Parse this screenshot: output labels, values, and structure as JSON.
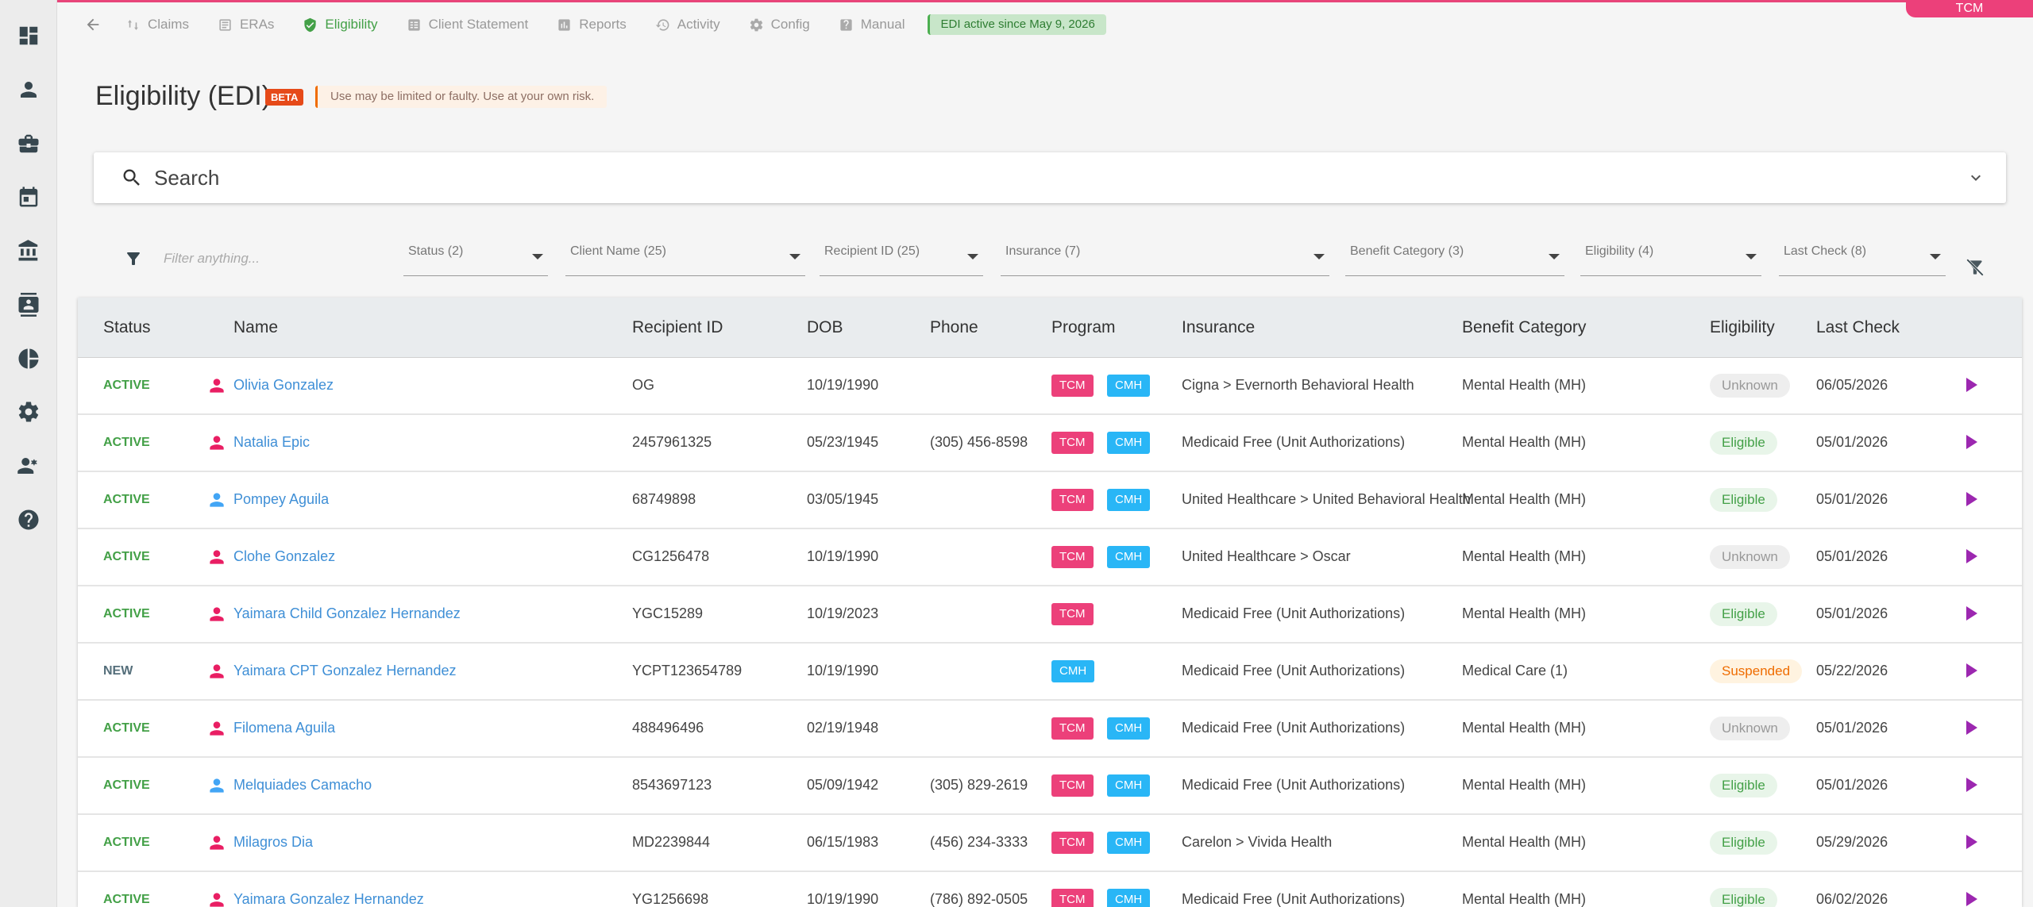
{
  "app": {
    "corner_tab": "TCM"
  },
  "nav": {
    "tabs": [
      {
        "label": "Claims",
        "icon": "claims-icon"
      },
      {
        "label": "ERAs",
        "icon": "eras-icon"
      },
      {
        "label": "Eligibility",
        "icon": "shield-check-icon",
        "active": true
      },
      {
        "label": "Client Statement",
        "icon": "statement-icon"
      },
      {
        "label": "Reports",
        "icon": "chart-icon"
      },
      {
        "label": "Activity",
        "icon": "history-icon"
      },
      {
        "label": "Config",
        "icon": "gear-icon"
      },
      {
        "label": "Manual",
        "icon": "help-book-icon"
      }
    ],
    "edi_badge": "EDI active since May 9, 2026"
  },
  "header": {
    "title": "Eligibility (EDI)",
    "beta": "BETA",
    "warning": "Use may be limited or faulty. Use at your own risk."
  },
  "search": {
    "placeholder": "Search"
  },
  "filters": {
    "input_placeholder": "Filter anything...",
    "status": "Status (2)",
    "client_name": "Client Name (25)",
    "recipient_id": "Recipient ID (25)",
    "insurance": "Insurance (7)",
    "benefit_category": "Benefit Category (3)",
    "eligibility": "Eligibility (4)",
    "last_check": "Last Check (8)"
  },
  "table": {
    "columns": {
      "status": "Status",
      "name": "Name",
      "recipient_id": "Recipient ID",
      "dob": "DOB",
      "phone": "Phone",
      "program": "Program",
      "insurance": "Insurance",
      "benefit_category": "Benefit Category",
      "eligibility": "Eligibility",
      "last_check": "Last Check"
    },
    "rows": [
      {
        "status": "ACTIVE",
        "gender": "female",
        "name": "Olivia Gonzalez",
        "recipient_id": "OG",
        "dob": "10/19/1990",
        "phone": "",
        "programs": [
          "TCM",
          "CMH"
        ],
        "insurance": "Cigna > Evernorth Behavioral Health",
        "benefit": "Mental Health (MH)",
        "eligibility": "Unknown",
        "last_check": "06/05/2026"
      },
      {
        "status": "ACTIVE",
        "gender": "female",
        "name": "Natalia Epic",
        "recipient_id": "2457961325",
        "dob": "05/23/1945",
        "phone": "(305) 456-8598",
        "programs": [
          "TCM",
          "CMH"
        ],
        "insurance": "Medicaid Free (Unit Authorizations)",
        "benefit": "Mental Health (MH)",
        "eligibility": "Eligible",
        "last_check": "05/01/2026"
      },
      {
        "status": "ACTIVE",
        "gender": "male",
        "name": "Pompey Aguila",
        "recipient_id": "68749898",
        "dob": "03/05/1945",
        "phone": "",
        "programs": [
          "TCM",
          "CMH"
        ],
        "insurance": "United Healthcare > United Behavioral Health",
        "benefit": "Mental Health (MH)",
        "eligibility": "Eligible",
        "last_check": "05/01/2026"
      },
      {
        "status": "ACTIVE",
        "gender": "female",
        "name": "Clohe Gonzalez",
        "recipient_id": "CG1256478",
        "dob": "10/19/1990",
        "phone": "",
        "programs": [
          "TCM",
          "CMH"
        ],
        "insurance": "United Healthcare > Oscar",
        "benefit": "Mental Health (MH)",
        "eligibility": "Unknown",
        "last_check": "05/01/2026"
      },
      {
        "status": "ACTIVE",
        "gender": "female",
        "name": "Yaimara Child Gonzalez Hernandez",
        "recipient_id": "YGC15289",
        "dob": "10/19/2023",
        "phone": "",
        "programs": [
          "TCM"
        ],
        "insurance": "Medicaid Free (Unit Authorizations)",
        "benefit": "Mental Health (MH)",
        "eligibility": "Eligible",
        "last_check": "05/01/2026"
      },
      {
        "status": "NEW",
        "gender": "female",
        "name": "Yaimara CPT Gonzalez Hernandez",
        "recipient_id": "YCPT123654789",
        "dob": "10/19/1990",
        "phone": "",
        "programs": [
          "CMH"
        ],
        "insurance": "Medicaid Free (Unit Authorizations)",
        "benefit": "Medical Care (1)",
        "eligibility": "Suspended",
        "last_check": "05/22/2026"
      },
      {
        "status": "ACTIVE",
        "gender": "female",
        "name": "Filomena Aguila",
        "recipient_id": "488496496",
        "dob": "02/19/1948",
        "phone": "",
        "programs": [
          "TCM",
          "CMH"
        ],
        "insurance": "Medicaid Free (Unit Authorizations)",
        "benefit": "Mental Health (MH)",
        "eligibility": "Unknown",
        "last_check": "05/01/2026"
      },
      {
        "status": "ACTIVE",
        "gender": "male",
        "name": "Melquiades Camacho",
        "recipient_id": "8543697123",
        "dob": "05/09/1942",
        "phone": "(305) 829-2619",
        "programs": [
          "TCM",
          "CMH"
        ],
        "insurance": "Medicaid Free (Unit Authorizations)",
        "benefit": "Mental Health (MH)",
        "eligibility": "Eligible",
        "last_check": "05/01/2026"
      },
      {
        "status": "ACTIVE",
        "gender": "female",
        "name": "Milagros Dia",
        "recipient_id": "MD2239844",
        "dob": "06/15/1983",
        "phone": "(456) 234-3333",
        "programs": [
          "TCM",
          "CMH"
        ],
        "insurance": "Carelon > Vivida Health",
        "benefit": "Mental Health (MH)",
        "eligibility": "Eligible",
        "last_check": "05/29/2026"
      },
      {
        "status": "ACTIVE",
        "gender": "female",
        "name": "Yaimara Gonzalez Hernandez",
        "recipient_id": "YG1256698",
        "dob": "10/19/1990",
        "phone": "(786) 892-0505",
        "programs": [
          "TCM",
          "CMH"
        ],
        "insurance": "Medicaid Free (Unit Authorizations)",
        "benefit": "Mental Health (MH)",
        "eligibility": "Eligible",
        "last_check": "06/02/2026"
      }
    ]
  },
  "colors": {
    "accent": "#ec407a",
    "active_tab": "#43a047",
    "link": "#3f8fd6",
    "female_icon": "#e91e63",
    "male_icon": "#42a5f5",
    "play": "#9c27b0"
  }
}
